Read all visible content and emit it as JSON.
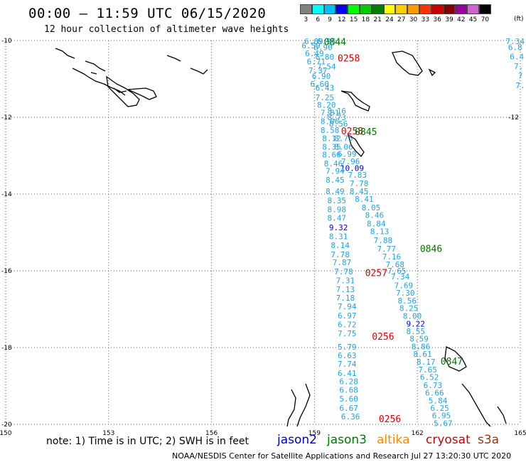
{
  "header": {
    "title": "00:00 – 11:59 UTC 06/15/2020",
    "subtitle": "12 hour collection of altimeter wave heights"
  },
  "color_scale": {
    "unit": "(ft)",
    "bins": [
      {
        "label": "3",
        "color": "#808080"
      },
      {
        "label": "6",
        "color": "#00ffff"
      },
      {
        "label": "9",
        "color": "#00bfff"
      },
      {
        "label": "12",
        "color": "#0000ff"
      },
      {
        "label": "15",
        "color": "#00ff00"
      },
      {
        "label": "18",
        "color": "#00cc00"
      },
      {
        "label": "21",
        "color": "#008000"
      },
      {
        "label": "24",
        "color": "#ffff00"
      },
      {
        "label": "27",
        "color": "#ffcc00"
      },
      {
        "label": "30",
        "color": "#ff9900"
      },
      {
        "label": "33",
        "color": "#ff3300"
      },
      {
        "label": "36",
        "color": "#cc0000"
      },
      {
        "label": "39",
        "color": "#800000"
      },
      {
        "label": "42",
        "color": "#990099"
      },
      {
        "label": "45",
        "color": "#cc66cc"
      },
      {
        "label": "70",
        "color": "#000000"
      }
    ]
  },
  "map": {
    "lon_labels": [
      "150",
      "153",
      "156",
      "159",
      "162",
      "165"
    ],
    "lat_labels": [
      "-10",
      "-12",
      "-12",
      "-14",
      "-16",
      "-18",
      "-20"
    ],
    "time_labels": [
      {
        "text": "0844",
        "lon": 159.6,
        "lat": -10.03,
        "color": "#007700"
      },
      {
        "text": "0258",
        "lon": 160.0,
        "lat": -10.45,
        "color": "#dd0000"
      },
      {
        "text": "0258",
        "lon": 160.1,
        "lat": -12.35,
        "color": "#dd0000"
      },
      {
        "text": "0845",
        "lon": 160.5,
        "lat": -12.37,
        "color": "#007700"
      },
      {
        "text": "0846",
        "lon": 162.4,
        "lat": -15.42,
        "color": "#007700"
      },
      {
        "text": "0257",
        "lon": 160.8,
        "lat": -16.05,
        "color": "#dd0000"
      },
      {
        "text": "0256",
        "lon": 161.0,
        "lat": -17.7,
        "color": "#dd0000"
      },
      {
        "text": "0847",
        "lon": 163.0,
        "lat": -18.35,
        "color": "#007700"
      },
      {
        "text": "0256",
        "lon": 161.2,
        "lat": -19.85,
        "color": "#dd0000"
      }
    ],
    "track_values": [
      {
        "text": "6.09",
        "lon": 158.98,
        "lat": -10.02
      },
      {
        "text": "6.96",
        "lon": 159.35,
        "lat": -10.02
      },
      {
        "text": "6.59",
        "lon": 158.9,
        "lat": -10.13
      },
      {
        "text": "6.90",
        "lon": 159.25,
        "lat": -10.18
      },
      {
        "text": "6.49",
        "lon": 159.0,
        "lat": -10.33
      },
      {
        "text": "6.80",
        "lon": 159.3,
        "lat": -10.43
      },
      {
        "text": "6.71",
        "lon": 159.05,
        "lat": -10.55
      },
      {
        "text": "7.54",
        "lon": 159.35,
        "lat": -10.68
      },
      {
        "text": "7.37",
        "lon": 159.1,
        "lat": -10.78
      },
      {
        "text": "6.90",
        "lon": 159.2,
        "lat": -10.93
      },
      {
        "text": "6.60",
        "lon": 159.15,
        "lat": -11.13
      },
      {
        "text": "6.43",
        "lon": 159.3,
        "lat": -11.23
      },
      {
        "text": "7.25",
        "lon": 159.3,
        "lat": -11.48
      },
      {
        "text": "8.20",
        "lon": 159.35,
        "lat": -11.68
      },
      {
        "text": "8.16",
        "lon": 159.65,
        "lat": -11.83
      },
      {
        "text": "7.81",
        "lon": 159.45,
        "lat": -11.88
      },
      {
        "text": "8.73",
        "lon": 159.65,
        "lat": -12.0
      },
      {
        "text": "8.06",
        "lon": 159.45,
        "lat": -12.1
      },
      {
        "text": "8.56",
        "lon": 159.7,
        "lat": -12.17
      },
      {
        "text": "8.58",
        "lon": 159.45,
        "lat": -12.33
      },
      {
        "text": "8.12",
        "lon": 159.5,
        "lat": -12.55
      },
      {
        "text": "8.75",
        "lon": 159.85,
        "lat": -12.55
      },
      {
        "text": "8.35",
        "lon": 159.5,
        "lat": -12.77
      },
      {
        "text": "8.06",
        "lon": 159.85,
        "lat": -12.77
      },
      {
        "text": "8.66",
        "lon": 159.5,
        "lat": -12.97
      },
      {
        "text": "6.99",
        "lon": 159.95,
        "lat": -12.95
      },
      {
        "text": "7.96",
        "lon": 160.05,
        "lat": -13.15
      },
      {
        "text": "8.46",
        "lon": 159.55,
        "lat": -13.2
      },
      {
        "text": "10.09",
        "lon": 160.1,
        "lat": -13.32,
        "color": "#0000cc"
      },
      {
        "text": "7.94",
        "lon": 159.6,
        "lat": -13.4
      },
      {
        "text": "7.83",
        "lon": 160.25,
        "lat": -13.5
      },
      {
        "text": "8.45",
        "lon": 159.6,
        "lat": -13.63
      },
      {
        "text": "7.78",
        "lon": 160.3,
        "lat": -13.72
      },
      {
        "text": "8.49",
        "lon": 159.6,
        "lat": -13.93
      },
      {
        "text": "8.45",
        "lon": 160.3,
        "lat": -13.93
      },
      {
        "text": "8.41",
        "lon": 160.45,
        "lat": -14.13
      },
      {
        "text": "8.35",
        "lon": 159.65,
        "lat": -14.17
      },
      {
        "text": "8.05",
        "lon": 160.65,
        "lat": -14.35
      },
      {
        "text": "8.98",
        "lon": 159.65,
        "lat": -14.4
      },
      {
        "text": "8.46",
        "lon": 160.75,
        "lat": -14.55
      },
      {
        "text": "8.47",
        "lon": 159.65,
        "lat": -14.62
      },
      {
        "text": "8.84",
        "lon": 160.8,
        "lat": -14.77
      },
      {
        "text": "9.32",
        "lon": 159.7,
        "lat": -14.87,
        "color": "#0000cc"
      },
      {
        "text": "8.13",
        "lon": 160.9,
        "lat": -14.97
      },
      {
        "text": "8.31",
        "lon": 159.7,
        "lat": -15.1
      },
      {
        "text": "7.88",
        "lon": 161.0,
        "lat": -15.2
      },
      {
        "text": "8.14",
        "lon": 159.75,
        "lat": -15.33
      },
      {
        "text": "7.77",
        "lon": 161.1,
        "lat": -15.43
      },
      {
        "text": "7.78",
        "lon": 159.75,
        "lat": -15.57
      },
      {
        "text": "7.16",
        "lon": 161.25,
        "lat": -15.63
      },
      {
        "text": "7.87",
        "lon": 159.8,
        "lat": -15.78
      },
      {
        "text": "7.68",
        "lon": 161.35,
        "lat": -15.83
      },
      {
        "text": "7.78",
        "lon": 159.85,
        "lat": -16.02
      },
      {
        "text": "7.65",
        "lon": 161.4,
        "lat": -16.0
      },
      {
        "text": "7.34",
        "lon": 161.5,
        "lat": -16.15
      },
      {
        "text": "7.31",
        "lon": 159.9,
        "lat": -16.25
      },
      {
        "text": "7.69",
        "lon": 161.6,
        "lat": -16.38
      },
      {
        "text": "7.13",
        "lon": 159.9,
        "lat": -16.48
      },
      {
        "text": "7.30",
        "lon": 161.65,
        "lat": -16.57
      },
      {
        "text": "7.18",
        "lon": 159.9,
        "lat": -16.7
      },
      {
        "text": "8.56",
        "lon": 161.7,
        "lat": -16.78
      },
      {
        "text": "7.94",
        "lon": 159.95,
        "lat": -16.93
      },
      {
        "text": "8.25",
        "lon": 161.75,
        "lat": -16.97
      },
      {
        "text": "8.00",
        "lon": 161.85,
        "lat": -17.18
      },
      {
        "text": "6.97",
        "lon": 159.95,
        "lat": -17.17
      },
      {
        "text": "9.22",
        "lon": 161.95,
        "lat": -17.38,
        "color": "#0000cc"
      },
      {
        "text": "6.72",
        "lon": 159.95,
        "lat": -17.4
      },
      {
        "text": "8.55",
        "lon": 161.95,
        "lat": -17.57
      },
      {
        "text": "7.75",
        "lon": 159.95,
        "lat": -17.63
      },
      {
        "text": "8.59",
        "lon": 162.05,
        "lat": -17.77
      },
      {
        "text": "8.86",
        "lon": 162.1,
        "lat": -17.97
      },
      {
        "text": "5.79",
        "lon": 159.95,
        "lat": -17.98
      },
      {
        "text": "8.61",
        "lon": 162.15,
        "lat": -18.17
      },
      {
        "text": "6.63",
        "lon": 159.95,
        "lat": -18.2
      },
      {
        "text": "8.17",
        "lon": 162.25,
        "lat": -18.37
      },
      {
        "text": "7.74",
        "lon": 159.95,
        "lat": -18.43
      },
      {
        "text": "7.65",
        "lon": 162.3,
        "lat": -18.57
      },
      {
        "text": "6.41",
        "lon": 159.95,
        "lat": -18.67
      },
      {
        "text": "6.52",
        "lon": 162.35,
        "lat": -18.77
      },
      {
        "text": "6.28",
        "lon": 160.0,
        "lat": -18.88
      },
      {
        "text": "6.73",
        "lon": 162.45,
        "lat": -18.98
      },
      {
        "text": "6.68",
        "lon": 160.0,
        "lat": -19.1
      },
      {
        "text": "6.66",
        "lon": 162.5,
        "lat": -19.18
      },
      {
        "text": "5.60",
        "lon": 160.0,
        "lat": -19.33
      },
      {
        "text": "5.84",
        "lon": 162.6,
        "lat": -19.38
      },
      {
        "text": "6.67",
        "lon": 160.0,
        "lat": -19.57
      },
      {
        "text": "6.25",
        "lon": 162.65,
        "lat": -19.57
      },
      {
        "text": "6.36",
        "lon": 160.05,
        "lat": -19.8
      },
      {
        "text": "6.95",
        "lon": 162.7,
        "lat": -19.77
      },
      {
        "text": "5.67",
        "lon": 162.75,
        "lat": -19.97
      },
      {
        "text": "7.34",
        "lon": 164.85,
        "lat": -10.02
      },
      {
        "text": "6.8",
        "lon": 164.85,
        "lat": -10.18
      },
      {
        "text": "6.4",
        "lon": 164.9,
        "lat": -10.42
      },
      {
        "text": "7.",
        "lon": 164.95,
        "lat": -10.67
      },
      {
        "text": "7",
        "lon": 165.0,
        "lat": -10.92
      },
      {
        "text": "7.",
        "lon": 165.0,
        "lat": -11.17
      }
    ]
  },
  "footer": {
    "note": "note:  1) Time is in UTC;  2) SWH is in feet",
    "legend": [
      {
        "label": "jason2",
        "color": "#0000cc"
      },
      {
        "label": "jason3",
        "color": "#007700"
      },
      {
        "label": "altika",
        "color": "#ff8800"
      },
      {
        "label": "cryosat",
        "color": "#cc0000"
      },
      {
        "label": "s3a",
        "color": "#993300"
      }
    ],
    "credit": "NOAA/NESDIS Center for Satellite Applications and Research   Jul 27 13:20:30 UTC 2020"
  }
}
